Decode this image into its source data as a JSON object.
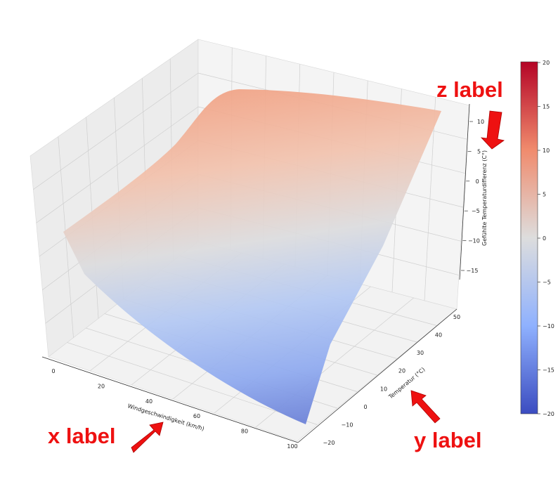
{
  "chart_data": {
    "type": "surface3d",
    "colormap": "coolwarm",
    "x_axis": {
      "label": "Windgeschwindigkeit (km/h)",
      "range": [
        0,
        100
      ],
      "ticks": [
        0,
        20,
        40,
        60,
        80,
        100
      ]
    },
    "y_axis": {
      "label": "Temperatur (°C)",
      "range": [
        -20,
        50
      ],
      "ticks": [
        -20,
        -10,
        0,
        10,
        20,
        30,
        40,
        50
      ]
    },
    "z_axis": {
      "label": "Gefühlte Temperaturdifferenz (C°)",
      "range": [
        -18,
        12
      ],
      "ticks": [
        -15,
        -10,
        -5,
        0,
        5,
        10
      ]
    },
    "colorbar": {
      "range": [
        -20,
        20
      ],
      "ticks": [
        -20,
        -15,
        -10,
        -5,
        0,
        5,
        10,
        15,
        20
      ]
    },
    "surface_corners": [
      {
        "x": 0,
        "y": -20,
        "z": 0
      },
      {
        "x": 0,
        "y": 50,
        "z": 12
      },
      {
        "x": 100,
        "y": -20,
        "z": -18
      },
      {
        "x": 100,
        "y": 50,
        "z": 11
      }
    ],
    "grid": true
  },
  "annotations": {
    "x": "x label",
    "y": "y label",
    "z": "z label"
  }
}
